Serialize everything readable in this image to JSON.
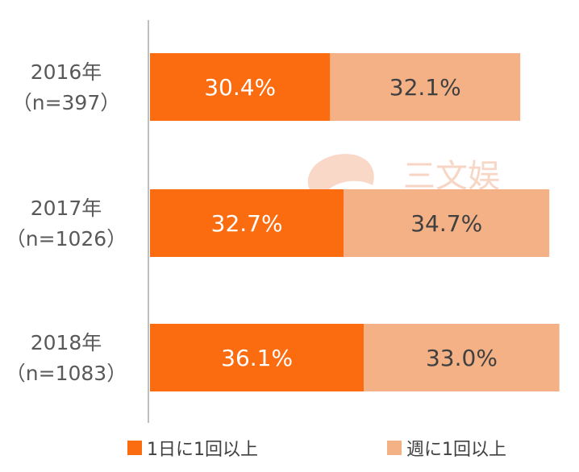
{
  "colors": {
    "daily": "#fb6b0f",
    "weekly": "#f4b186",
    "axis": "#bfbfbf",
    "label_on_daily": "#ffffff",
    "label_on_weekly": "#404040"
  },
  "watermark": {
    "text": "三文娱",
    "icon": "watermark-logo-icon"
  },
  "chart_data": {
    "type": "bar",
    "orientation": "horizontal",
    "stacked": true,
    "categories": [
      {
        "year": "2016年",
        "n": "（n=397）"
      },
      {
        "year": "2017年",
        "n": "（n=1026）"
      },
      {
        "year": "2018年",
        "n": "（n=1083）"
      }
    ],
    "series": [
      {
        "name": "1日に1回以上",
        "values": [
          30.4,
          32.7,
          36.1
        ],
        "labels": [
          "30.4%",
          "32.7%",
          "36.1%"
        ],
        "color": "#fb6b0f"
      },
      {
        "name": "週に1回以上",
        "values": [
          32.1,
          34.7,
          33.0
        ],
        "labels": [
          "32.1%",
          "34.7%",
          "33.0%"
        ],
        "color": "#f4b186"
      }
    ],
    "xlim": [
      0,
      70
    ],
    "unit": "%",
    "grid": false,
    "legend_position": "bottom"
  }
}
